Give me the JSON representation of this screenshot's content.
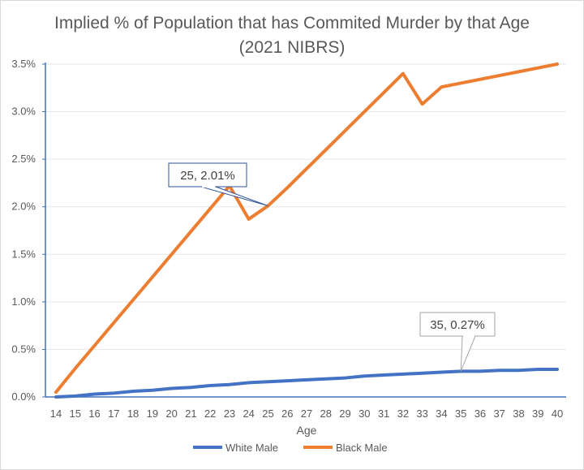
{
  "chart_data": {
    "type": "line",
    "title": "Implied % of Population that has Commited Murder by that Age (2021 NIBRS)",
    "xlabel": "Age",
    "ylabel": "",
    "x": [
      14,
      15,
      16,
      17,
      18,
      19,
      20,
      21,
      22,
      23,
      24,
      25,
      26,
      27,
      28,
      29,
      30,
      31,
      32,
      33,
      34,
      35,
      36,
      37,
      38,
      39,
      40
    ],
    "ylim": [
      0,
      0.035
    ],
    "yticks": [
      "0.0%",
      "0.5%",
      "1.0%",
      "1.5%",
      "2.0%",
      "2.5%",
      "3.0%",
      "3.5%"
    ],
    "grid": "horizontal",
    "legend_position": "bottom",
    "series": [
      {
        "name": "White Male",
        "color": "#4472C4",
        "values": [
          0.0,
          0.0001,
          0.0003,
          0.0004,
          0.0006,
          0.0007,
          0.0009,
          0.001,
          0.0012,
          0.0013,
          0.0015,
          0.0016,
          0.0017,
          0.0018,
          0.0019,
          0.002,
          0.0022,
          0.0023,
          0.0024,
          0.0025,
          0.0026,
          0.0027,
          0.0027,
          0.0028,
          0.0028,
          0.0029,
          0.0029
        ]
      },
      {
        "name": "Black Male",
        "color": "#ED7D31",
        "values": [
          0.0005,
          0.003,
          0.0054,
          0.0078,
          0.0102,
          0.0126,
          0.015,
          0.0174,
          0.0198,
          0.0222,
          0.0187,
          0.0201,
          0.022,
          0.024,
          0.026,
          0.028,
          0.03,
          0.032,
          0.034,
          0.0308,
          0.0326,
          0.033,
          0.0334,
          0.0338,
          0.0342,
          0.0346,
          0.035
        ]
      }
    ],
    "annotations": [
      {
        "series": 1,
        "x": 25,
        "label": "25, 2.01%"
      },
      {
        "series": 0,
        "x": 35,
        "label": "35, 0.27%"
      }
    ]
  }
}
